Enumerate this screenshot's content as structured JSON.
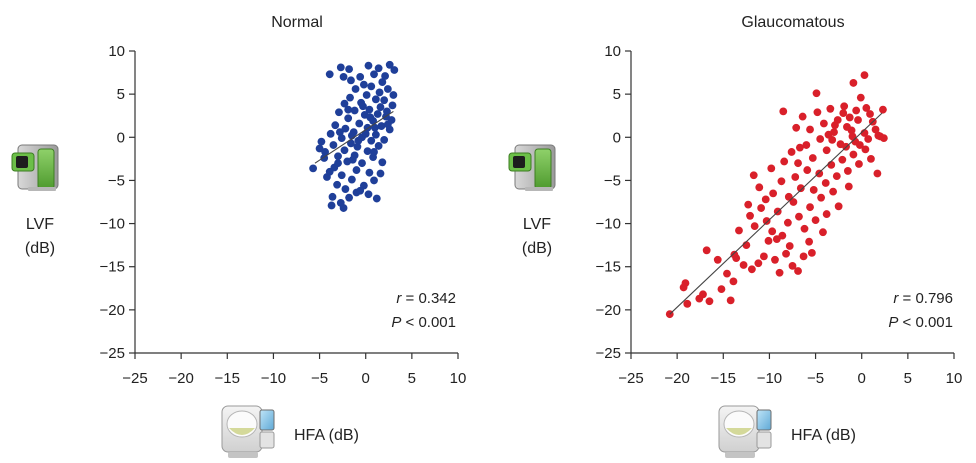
{
  "chart_data": [
    {
      "type": "scatter",
      "title": "Normal",
      "ylabel_lines": [
        "LVF",
        "(dB)"
      ],
      "xlabel": "HFA (dB)",
      "xlim": [
        -25,
        10
      ],
      "ylim": [
        -25,
        10
      ],
      "xticks": [
        -25,
        -20,
        -15,
        -10,
        -5,
        0,
        5,
        10
      ],
      "yticks": [
        10,
        5,
        0,
        -5,
        -10,
        -15,
        -20,
        -25
      ],
      "xtick_labels": [
        "−25",
        "−20",
        "−15",
        "−10",
        "−5",
        "0",
        "5",
        "10"
      ],
      "ytick_labels": [
        "10",
        "5",
        "0",
        "−5",
        "−10",
        "−15",
        "−20",
        "−25"
      ],
      "stat_r_symbol": "r",
      "stat_r_value": " = 0.342",
      "stat_p_symbol": "P",
      "stat_p_value": " < 0.001",
      "color": "#1f3f99",
      "fit_line": {
        "x": [
          -5.5,
          3
        ],
        "y": [
          -3.0,
          3.0
        ]
      },
      "points": [
        [
          -3.9,
          7.3
        ],
        [
          -2.7,
          8.1
        ],
        [
          -1.8,
          7.9
        ],
        [
          0.3,
          8.3
        ],
        [
          1.4,
          8.0
        ],
        [
          2.6,
          8.4
        ],
        [
          3.1,
          7.8
        ],
        [
          -2.4,
          7.0
        ],
        [
          -1.6,
          6.6
        ],
        [
          -0.6,
          7.0
        ],
        [
          0.9,
          7.3
        ],
        [
          2.1,
          7.1
        ],
        [
          1.8,
          6.4
        ],
        [
          -0.2,
          6.1
        ],
        [
          -1.1,
          5.6
        ],
        [
          0.6,
          5.9
        ],
        [
          2.4,
          5.6
        ],
        [
          3.0,
          4.9
        ],
        [
          -1.7,
          4.6
        ],
        [
          0.1,
          4.9
        ],
        [
          1.1,
          4.4
        ],
        [
          2.0,
          4.3
        ],
        [
          -0.5,
          4.0
        ],
        [
          -2.3,
          3.9
        ],
        [
          1.6,
          3.5
        ],
        [
          2.9,
          3.7
        ],
        [
          0.4,
          3.2
        ],
        [
          -1.2,
          3.1
        ],
        [
          -2.9,
          2.9
        ],
        [
          -0.1,
          2.6
        ],
        [
          1.3,
          2.7
        ],
        [
          2.2,
          2.4
        ],
        [
          -1.9,
          2.2
        ],
        [
          0.8,
          1.9
        ],
        [
          -0.7,
          1.6
        ],
        [
          -3.3,
          1.4
        ],
        [
          1.7,
          1.3
        ],
        [
          -2.2,
          1.0
        ],
        [
          0.2,
          1.1
        ],
        [
          2.6,
          0.9
        ],
        [
          -1.3,
          0.6
        ],
        [
          -3.8,
          0.4
        ],
        [
          1.1,
          0.3
        ],
        [
          -0.4,
          0.0
        ],
        [
          -2.6,
          -0.1
        ],
        [
          0.6,
          -0.4
        ],
        [
          2.0,
          -0.3
        ],
        [
          -1.6,
          -0.7
        ],
        [
          -3.5,
          -0.9
        ],
        [
          -0.9,
          -1.1
        ],
        [
          1.4,
          -1.0
        ],
        [
          -2.3,
          -1.5
        ],
        [
          0.2,
          -1.6
        ],
        [
          -4.4,
          -1.7
        ],
        [
          -1.2,
          -2.1
        ],
        [
          -3.0,
          -2.2
        ],
        [
          0.8,
          -2.3
        ],
        [
          -5.7,
          -3.6
        ],
        [
          -2.0,
          -2.8
        ],
        [
          -0.4,
          -3.0
        ],
        [
          1.8,
          -2.9
        ],
        [
          -3.4,
          -3.5
        ],
        [
          -1.0,
          -3.8
        ],
        [
          0.4,
          -4.1
        ],
        [
          -2.6,
          -4.4
        ],
        [
          -4.2,
          -4.6
        ],
        [
          -1.5,
          -4.9
        ],
        [
          0.9,
          -5.0
        ],
        [
          -3.1,
          -5.5
        ],
        [
          -0.2,
          -5.6
        ],
        [
          -2.2,
          -6.0
        ],
        [
          -1.0,
          -6.4
        ],
        [
          -3.6,
          -6.9
        ],
        [
          0.3,
          -6.6
        ],
        [
          -1.8,
          -7.0
        ],
        [
          1.2,
          -7.1
        ],
        [
          -2.7,
          -7.6
        ],
        [
          -3.7,
          -7.9
        ],
        [
          -2.4,
          -8.2
        ],
        [
          -0.6,
          -6.2
        ],
        [
          -3.9,
          -4.0
        ],
        [
          1.6,
          -4.2
        ],
        [
          2.4,
          1.5
        ],
        [
          -4.5,
          -2.4
        ],
        [
          -5.0,
          -1.3
        ],
        [
          0.0,
          0.4
        ],
        [
          -1.5,
          0.2
        ],
        [
          1.0,
          1.1
        ],
        [
          -2.8,
          0.6
        ],
        [
          0.5,
          2.3
        ],
        [
          -0.8,
          -0.4
        ],
        [
          2.8,
          2.0
        ],
        [
          -4.8,
          -0.5
        ],
        [
          -3.0,
          -3.0
        ],
        [
          -0.3,
          3.6
        ],
        [
          1.5,
          5.2
        ],
        [
          -1.9,
          3.2
        ],
        [
          2.3,
          3.0
        ],
        [
          0.9,
          -1.7
        ],
        [
          -1.4,
          -2.6
        ]
      ]
    },
    {
      "type": "scatter",
      "title": "Glaucomatous",
      "ylabel_lines": [
        "LVF",
        "(dB)"
      ],
      "xlabel": "HFA (dB)",
      "xlim": [
        -25,
        10
      ],
      "ylim": [
        -25,
        10
      ],
      "xticks": [
        -25,
        -20,
        -15,
        -10,
        -5,
        0,
        5,
        10
      ],
      "yticks": [
        10,
        5,
        0,
        -5,
        -10,
        -15,
        -20,
        -25
      ],
      "xtick_labels": [
        "−25",
        "−20",
        "−15",
        "−10",
        "−5",
        "0",
        "5",
        "10"
      ],
      "ytick_labels": [
        "10",
        "5",
        "0",
        "−5",
        "−10",
        "−15",
        "−20",
        "−25"
      ],
      "stat_r_symbol": "r",
      "stat_r_value": " = 0.796",
      "stat_p_symbol": "P",
      "stat_p_value": " < 0.001",
      "color": "#d9202a",
      "fit_line": {
        "x": [
          -20.8,
          2.2
        ],
        "y": [
          -20.5,
          2.8
        ]
      },
      "points": [
        [
          -20.8,
          -20.5
        ],
        [
          -19.3,
          -17.4
        ],
        [
          -18.9,
          -19.3
        ],
        [
          -19.1,
          -16.9
        ],
        [
          -17.2,
          -18.2
        ],
        [
          -16.5,
          -19.0
        ],
        [
          -16.8,
          -13.1
        ],
        [
          -15.2,
          -17.6
        ],
        [
          -14.6,
          -15.8
        ],
        [
          -13.9,
          -16.7
        ],
        [
          -14.2,
          -18.9
        ],
        [
          -13.6,
          -14.0
        ],
        [
          -12.8,
          -14.8
        ],
        [
          -12.5,
          -12.5
        ],
        [
          -11.9,
          -15.3
        ],
        [
          -11.2,
          -14.6
        ],
        [
          -10.6,
          -13.8
        ],
        [
          -10.1,
          -12.0
        ],
        [
          -9.4,
          -14.2
        ],
        [
          -8.9,
          -15.7
        ],
        [
          -8.2,
          -13.5
        ],
        [
          -7.5,
          -14.9
        ],
        [
          -6.9,
          -15.5
        ],
        [
          -6.3,
          -13.8
        ],
        [
          -5.7,
          -12.1
        ],
        [
          -13.3,
          -10.8
        ],
        [
          -12.1,
          -9.1
        ],
        [
          -11.6,
          -10.3
        ],
        [
          -10.9,
          -8.2
        ],
        [
          -10.3,
          -9.7
        ],
        [
          -9.7,
          -10.9
        ],
        [
          -9.1,
          -8.6
        ],
        [
          -8.6,
          -11.4
        ],
        [
          -8.0,
          -9.9
        ],
        [
          -7.4,
          -7.5
        ],
        [
          -6.8,
          -9.2
        ],
        [
          -6.2,
          -10.6
        ],
        [
          -5.6,
          -8.1
        ],
        [
          -5.0,
          -9.6
        ],
        [
          -4.4,
          -7.0
        ],
        [
          -3.8,
          -8.9
        ],
        [
          -3.1,
          -6.3
        ],
        [
          -11.1,
          -5.8
        ],
        [
          -10.4,
          -7.2
        ],
        [
          -9.6,
          -6.5
        ],
        [
          -8.7,
          -5.1
        ],
        [
          -7.9,
          -6.9
        ],
        [
          -7.2,
          -4.6
        ],
        [
          -6.6,
          -5.9
        ],
        [
          -5.9,
          -3.8
        ],
        [
          -5.2,
          -6.1
        ],
        [
          -4.6,
          -4.2
        ],
        [
          -3.9,
          -5.3
        ],
        [
          -3.3,
          -3.2
        ],
        [
          -2.7,
          -4.5
        ],
        [
          -2.1,
          -2.6
        ],
        [
          -1.5,
          -3.9
        ],
        [
          -0.9,
          -2.0
        ],
        [
          -0.3,
          -3.1
        ],
        [
          0.4,
          -1.4
        ],
        [
          1.0,
          -2.5
        ],
        [
          1.7,
          -4.2
        ],
        [
          -8.4,
          -2.8
        ],
        [
          -7.6,
          -1.7
        ],
        [
          -6.9,
          -3.0
        ],
        [
          -6.0,
          -0.9
        ],
        [
          -5.3,
          -2.4
        ],
        [
          -4.5,
          -0.2
        ],
        [
          -3.8,
          -1.5
        ],
        [
          -3.0,
          0.6
        ],
        [
          -2.3,
          -0.8
        ],
        [
          -1.6,
          1.2
        ],
        [
          -1.0,
          0.1
        ],
        [
          -0.4,
          2.0
        ],
        [
          0.3,
          0.5
        ],
        [
          0.9,
          2.7
        ],
        [
          1.5,
          0.9
        ],
        [
          2.0,
          0.1
        ],
        [
          -7.1,
          1.1
        ],
        [
          -6.4,
          2.4
        ],
        [
          -5.6,
          0.9
        ],
        [
          -4.8,
          2.9
        ],
        [
          -4.1,
          1.6
        ],
        [
          -3.4,
          3.3
        ],
        [
          -2.6,
          2.0
        ],
        [
          -1.9,
          3.6
        ],
        [
          -1.3,
          2.3
        ],
        [
          -0.6,
          3.1
        ],
        [
          -0.1,
          4.6
        ],
        [
          0.5,
          3.4
        ],
        [
          1.2,
          1.8
        ],
        [
          2.3,
          3.2
        ],
        [
          -8.5,
          3.0
        ],
        [
          -4.9,
          5.1
        ],
        [
          -0.9,
          6.3
        ],
        [
          0.3,
          7.2
        ],
        [
          -3.2,
          -0.3
        ],
        [
          -1.7,
          -1.1
        ],
        [
          -2.9,
          1.4
        ],
        [
          -0.7,
          -0.5
        ],
        [
          1.8,
          0.2
        ],
        [
          2.4,
          -0.1
        ],
        [
          -9.8,
          -3.6
        ],
        [
          -11.7,
          -4.4
        ],
        [
          -12.3,
          -7.8
        ],
        [
          -13.8,
          -13.6
        ],
        [
          -15.6,
          -14.2
        ],
        [
          -17.6,
          -18.7
        ],
        [
          -4.2,
          -11.0
        ],
        [
          -5.4,
          -13.4
        ],
        [
          -7.8,
          -12.6
        ],
        [
          -9.2,
          -11.8
        ],
        [
          -2.5,
          -8.0
        ],
        [
          -1.4,
          -5.7
        ],
        [
          -0.2,
          -0.9
        ],
        [
          -1.1,
          0.8
        ],
        [
          0.7,
          -0.2
        ],
        [
          -2.0,
          2.8
        ],
        [
          -3.6,
          0.3
        ],
        [
          -6.7,
          -1.2
        ]
      ]
    }
  ],
  "icons": {
    "lvf_device": "lvf-device-icon",
    "hfa_device": "hfa-device-icon"
  }
}
